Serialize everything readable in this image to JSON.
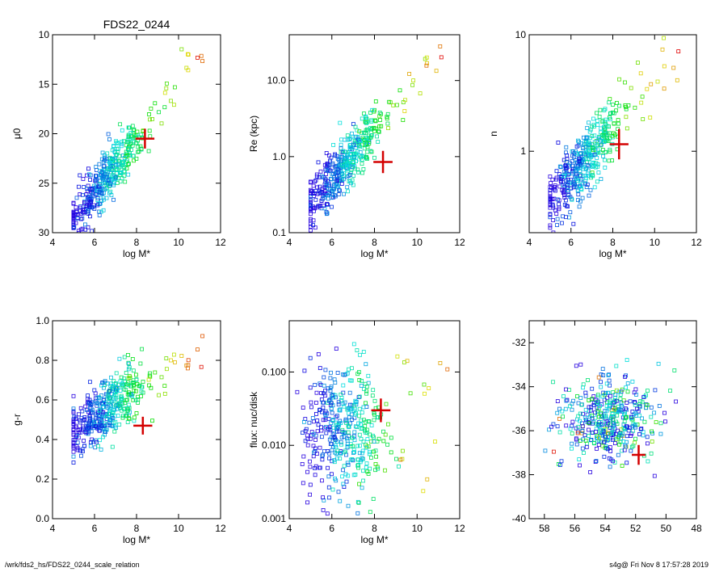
{
  "footer": {
    "path": "/wrk/fds2_hs/FDS22_0244_scale_relation",
    "stamp": "s4g@  Fri Nov  8 17:57:28 2019"
  },
  "chart_data": [
    {
      "type": "scatter",
      "title": "FDS22_0244",
      "xlabel": "log M*",
      "ylabel": "μ0",
      "xlim": [
        4,
        12
      ],
      "ylim": [
        30,
        10
      ],
      "xticks": [
        4,
        6,
        8,
        10,
        12
      ],
      "yticks": [
        10,
        15,
        20,
        25,
        30
      ],
      "ytick_labels": [
        "10",
        "15",
        "20",
        "25",
        "30"
      ],
      "ylog": false,
      "highlight": {
        "x": 8.4,
        "y": 20.5,
        "xerr": 0.45,
        "yerr": 1.0
      }
    },
    {
      "type": "scatter",
      "title": "",
      "xlabel": "log M*",
      "ylabel": "Re (kpc)",
      "xlim": [
        4,
        12
      ],
      "ylim": [
        0.1,
        40
      ],
      "xticks": [
        4,
        6,
        8,
        10,
        12
      ],
      "yticks": [
        0.1,
        1.0,
        10.0
      ],
      "ytick_labels": [
        "0.1",
        "1.0",
        "10.0"
      ],
      "ylog": true,
      "highlight": {
        "x": 8.4,
        "y": 0.85,
        "xerr": 0.45,
        "yerr_factor": 1.4
      }
    },
    {
      "type": "scatter",
      "title": "",
      "xlabel": "log M*",
      "ylabel": "n",
      "xlim": [
        4,
        12
      ],
      "ylim": [
        0.2,
        10
      ],
      "xticks": [
        4,
        6,
        8,
        10,
        12
      ],
      "yticks": [
        1,
        10
      ],
      "ytick_labels": [
        "1",
        "10"
      ],
      "ylog": true,
      "highlight": {
        "x": 8.3,
        "y": 1.15,
        "xerr": 0.45,
        "yerr_factor": 1.35
      }
    },
    {
      "type": "scatter",
      "title": "",
      "xlabel": "log M*",
      "ylabel": "g-r",
      "xlim": [
        4,
        12
      ],
      "ylim": [
        0.0,
        1.0
      ],
      "xticks": [
        4,
        6,
        8,
        10,
        12
      ],
      "yticks": [
        0.0,
        0.2,
        0.4,
        0.6,
        0.8,
        1.0
      ],
      "ytick_labels": [
        "0.0",
        "0.2",
        "0.4",
        "0.6",
        "0.8",
        "1.0"
      ],
      "ylog": false,
      "highlight": {
        "x": 8.3,
        "y": 0.47,
        "xerr": 0.45,
        "yerr": 0.045
      }
    },
    {
      "type": "scatter",
      "title": "",
      "xlabel": "log M*",
      "ylabel": "flux: nuc/disk",
      "xlim": [
        4,
        12
      ],
      "ylim": [
        0.001,
        0.5
      ],
      "xticks": [
        4,
        6,
        8,
        10,
        12
      ],
      "yticks": [
        0.001,
        0.01,
        0.1
      ],
      "ytick_labels": [
        "0.001",
        "0.010",
        "0.100"
      ],
      "ylog": true,
      "highlight": {
        "x": 8.3,
        "y": 0.03,
        "xerr": 0.45,
        "yerr_factor": 1.45
      }
    },
    {
      "type": "scatter",
      "title": "",
      "xlabel": "",
      "ylabel": "",
      "xlim": [
        59,
        48
      ],
      "ylim": [
        -40,
        -31
      ],
      "xticks": [
        58,
        56,
        54,
        52,
        50,
        48
      ],
      "yticks": [
        -40,
        -38,
        -36,
        -34,
        -32
      ],
      "ytick_labels": [
        "-40",
        "-38",
        "-36",
        "-34",
        "-32"
      ],
      "ylog": false,
      "highlight": {
        "x": 51.8,
        "y": -37.1,
        "xerr": 0.45,
        "yerr": 0.45
      }
    }
  ]
}
